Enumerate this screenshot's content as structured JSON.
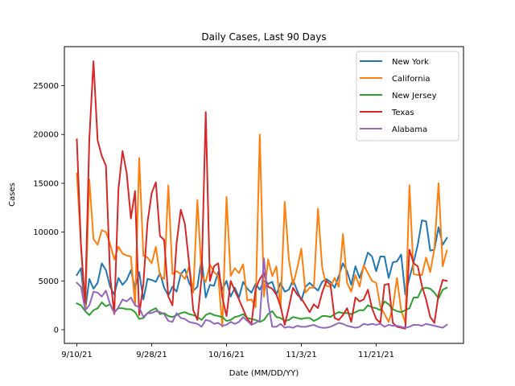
{
  "chart_data": {
    "type": "line",
    "title": "Daily Cases, Last 90 Days",
    "xlabel": "Date (MM/DD/YY)",
    "ylabel": "Cases",
    "xlim": [
      -3,
      93
    ],
    "ylim": [
      -1400,
      29000
    ],
    "x_ticks": [
      {
        "x": 0,
        "label": "9/10/21"
      },
      {
        "x": 18,
        "label": "9/28/21"
      },
      {
        "x": 36,
        "label": "10/16/21"
      },
      {
        "x": 54,
        "label": "11/3/21"
      },
      {
        "x": 72,
        "label": "11/21/21"
      }
    ],
    "y_ticks": [
      {
        "y": 0,
        "label": "0"
      },
      {
        "y": 5000,
        "label": "5000"
      },
      {
        "y": 10000,
        "label": "10000"
      },
      {
        "y": 15000,
        "label": "15000"
      },
      {
        "y": 20000,
        "label": "20000"
      },
      {
        "y": 25000,
        "label": "25000"
      }
    ],
    "grid": false,
    "legend_position": "top-right",
    "series": [
      {
        "name": "New York",
        "color": "#1f77b4",
        "values": [
          5600,
          6300,
          2000,
          5200,
          4200,
          4800,
          6800,
          6100,
          4400,
          3600,
          5300,
          4600,
          5100,
          6100,
          4200,
          5900,
          3100,
          5200,
          5100,
          4900,
          5800,
          4300,
          3500,
          4400,
          3900,
          5700,
          6200,
          4800,
          4000,
          4400,
          7300,
          3300,
          4600,
          4500,
          5900,
          4100,
          5000,
          3400,
          4300,
          3300,
          4900,
          4200,
          3800,
          4700,
          4100,
          5000,
          4700,
          4900,
          3600,
          4800,
          3900,
          4100,
          5100,
          4000,
          3000,
          4400,
          4800,
          4400,
          4000,
          4900,
          5200,
          4900,
          4300,
          5500,
          6800,
          6000,
          4600,
          6500,
          5300,
          6500,
          7900,
          7500,
          6000,
          7500,
          7500,
          5300,
          6900,
          7000,
          7700,
          3600,
          5300,
          6900,
          8700,
          11200,
          11100,
          8100,
          8200,
          10500,
          8700,
          9400
        ]
      },
      {
        "name": "California",
        "color": "#ff7f0e",
        "values": [
          16000,
          8700,
          2000,
          15400,
          9300,
          8700,
          10200,
          10000,
          8800,
          7200,
          8500,
          7800,
          7600,
          7500,
          2500,
          17600,
          7600,
          7400,
          6800,
          8500,
          5500,
          5200,
          14800,
          5700,
          6000,
          5700,
          5200,
          6500,
          3800,
          13300,
          5600,
          4900,
          6700,
          5900,
          5500,
          300,
          13600,
          5500,
          6300,
          5800,
          6700,
          3000,
          3100,
          2300,
          20000,
          3400,
          7200,
          5500,
          6500,
          2200,
          13100,
          7200,
          4600,
          6300,
          8300,
          3800,
          4300,
          4300,
          12400,
          6400,
          4500,
          4400,
          5300,
          4400,
          9800,
          4800,
          3900,
          5600,
          4400,
          6600,
          5800,
          5000,
          4800,
          2400,
          1600,
          800,
          2300,
          5300,
          2000,
          700,
          14800,
          5700,
          5600,
          5600,
          7400,
          5900,
          8300,
          15000,
          6500,
          8100
        ]
      },
      {
        "name": "New Jersey",
        "color": "#2ca02c",
        "values": [
          2700,
          2500,
          1900,
          1500,
          2000,
          2200,
          2800,
          2400,
          2600,
          1800,
          2200,
          2200,
          2100,
          2100,
          1800,
          1100,
          1200,
          1700,
          2000,
          2200,
          1600,
          1700,
          1400,
          1300,
          1500,
          1700,
          1800,
          1600,
          1500,
          1300,
          1000,
          1500,
          1700,
          1500,
          1400,
          1300,
          900,
          1000,
          1300,
          1400,
          1600,
          1200,
          1100,
          1000,
          800,
          1000,
          1600,
          1900,
          1300,
          1200,
          900,
          1000,
          1300,
          1200,
          1100,
          1200,
          1200,
          900,
          1100,
          1400,
          1400,
          1300,
          1600,
          1800,
          1700,
          1700,
          1600,
          1800,
          2000,
          2000,
          2500,
          2300,
          2200,
          2000,
          2900,
          2600,
          2100,
          1900,
          1800,
          2000,
          2200,
          3300,
          3300,
          4200,
          4300,
          4200,
          3800,
          3200,
          4100,
          4300
        ]
      },
      {
        "name": "Texas",
        "color": "#d62728",
        "values": [
          19500,
          8500,
          2700,
          19500,
          27500,
          19400,
          17800,
          16800,
          5500,
          1600,
          14400,
          18300,
          16000,
          11400,
          14200,
          1500,
          4700,
          11000,
          14000,
          15100,
          9600,
          9200,
          3400,
          2500,
          8900,
          12300,
          10800,
          6800,
          2000,
          1000,
          5300,
          22300,
          5000,
          6500,
          6800,
          3300,
          1400,
          5000,
          4000,
          3100,
          2100,
          1100,
          600,
          4200,
          5200,
          5800,
          4400,
          4200,
          3600,
          2400,
          500,
          2300,
          4300,
          3600,
          3200,
          2500,
          1800,
          2600,
          2200,
          3800,
          5000,
          4600,
          1200,
          1000,
          1500,
          2200,
          800,
          3300,
          2900,
          3100,
          4100,
          2200,
          1100,
          700,
          4600,
          4700,
          700,
          300,
          200,
          100,
          8200,
          6800,
          6500,
          4500,
          3100,
          1300,
          700,
          3600,
          5100,
          5000
        ]
      },
      {
        "name": "Alabama",
        "color": "#9467bd",
        "values": [
          4800,
          4400,
          2000,
          2500,
          3900,
          3800,
          3400,
          4000,
          2600,
          1700,
          2300,
          3100,
          2900,
          3300,
          2500,
          2300,
          1300,
          1700,
          1700,
          1900,
          1800,
          1600,
          900,
          800,
          1700,
          1200,
          1100,
          800,
          700,
          600,
          300,
          1000,
          900,
          600,
          700,
          400,
          500,
          800,
          600,
          800,
          1300,
          900,
          500,
          700,
          1000,
          7300,
          2800,
          300,
          300,
          600,
          200,
          300,
          200,
          400,
          300,
          300,
          400,
          500,
          300,
          200,
          200,
          300,
          500,
          700,
          600,
          400,
          300,
          200,
          300,
          600,
          500,
          600,
          500,
          600,
          300,
          500,
          400,
          400,
          300,
          200,
          300,
          500,
          500,
          400,
          600,
          500,
          400,
          300,
          200,
          500
        ]
      }
    ]
  }
}
